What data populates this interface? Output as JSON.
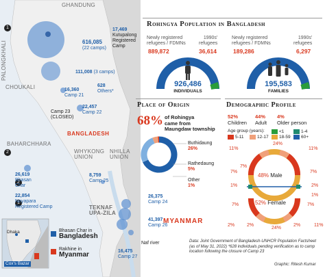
{
  "map": {
    "labels": {
      "ghandung": "GHANDUNG",
      "palongkhali": "PALONGKHALI",
      "choukali": "CHOUKALI",
      "baharchhara": "BAHARCHHARA",
      "bangladesh": "BANGLADESH",
      "whykong": "WHYKONG\nUNION",
      "nhilla": "NHILLA\nUNION",
      "teknaf": "TEKNAF\nUPA-ZILA",
      "myanmar": "MYANMAR",
      "naf_river": "Naf river"
    },
    "camps": [
      {
        "number": "17,469",
        "text": "Kutupalong\nRegistered\nCamp"
      },
      {
        "number": "616,085",
        "text": "(22 camps)"
      },
      {
        "number": "111,008",
        "text": "(3 camps)"
      },
      {
        "number": "16,360",
        "text": "Camp 21"
      },
      {
        "number": "628",
        "text": "Others*"
      },
      {
        "number": "",
        "text": "Camp 23\n(CLOSED)"
      },
      {
        "number": "22,457",
        "text": "Camp 22"
      },
      {
        "number": "26,619",
        "text": "Bhasan\nChar"
      },
      {
        "number": "8,759",
        "text": "Camp 25"
      },
      {
        "number": "22,854",
        "text": "Nayapara\nRegistered Camp"
      },
      {
        "number": "26,375",
        "text": "Camp 24"
      },
      {
        "number": "41,397",
        "text": "Camp 26"
      },
      {
        "number": "16,475",
        "text": "Camp 27"
      }
    ],
    "markers": [
      "1",
      "2",
      "2",
      "1"
    ],
    "inset": {
      "dhaka": "Dhaka",
      "coxs_bazar": "Cox's Bazar",
      "legend_bhasan_prefix": "Bhasan Char in",
      "legend_bhasan_country": "Bangladesh",
      "legend_rakhine_prefix": "Rakhine in",
      "legend_rakhine_country": "Myanmar"
    }
  },
  "population": {
    "title": "Rohingya Population in Bangladesh",
    "individuals": {
      "registered_label": "Newly registered\nrefugees / FDMNs",
      "registered_value": "889,872",
      "older_label": "1990s'\nrefugees",
      "older_value": "36,614",
      "total": "926,486",
      "total_label": "INDIVIDUALS"
    },
    "families": {
      "registered_label": "Newly registered\nrefugees / FDMNs",
      "registered_value": "189,286",
      "older_label": "1990s'\nrefugees",
      "older_value": "6,297",
      "total": "195,583",
      "total_label": "FAMILIES"
    }
  },
  "origin": {
    "title": "Place of Origin",
    "headline_pct": "68%",
    "headline_text": "of Rohingya\ncame from\nMaungdaw township",
    "segments": [
      {
        "name": "Maungdaw",
        "pct": 68,
        "color": "#1f5fa8"
      },
      {
        "name": "Buthidaung",
        "pct": 26,
        "color": "#7fb0e0"
      },
      {
        "name": "Rathedaung",
        "pct": 5,
        "color": "#f0a07a"
      },
      {
        "name": "Other",
        "pct": 1,
        "color": "#d9381e"
      }
    ],
    "labels": [
      {
        "name": "Buthidaung",
        "pct": "26%"
      },
      {
        "name": "Rathedaung",
        "pct": "5%"
      },
      {
        "name": "Other",
        "pct": "1%"
      }
    ]
  },
  "demographic": {
    "title": "Demographic Profile",
    "children_pct": "52%",
    "children_label": "Children",
    "adult_pct": "44%",
    "adult_label": "Adult",
    "older_pct": "4%",
    "older_label": "Older person",
    "age_group_title": "Age group (years):",
    "age_groups": [
      {
        "label": "<1",
        "color": "#2a9d3a"
      },
      {
        "label": "1-4",
        "color": "#1f8a6f"
      },
      {
        "label": "5-11",
        "color": "#d9381e"
      },
      {
        "label": "12-17",
        "color": "#f0a07a"
      },
      {
        "label": "18-59",
        "color": "#e8a93a"
      },
      {
        "label": "60+",
        "color": "#1f5fa8"
      }
    ],
    "male_pct": "48%",
    "male_label": "Male",
    "female_pct": "52%",
    "female_label": "Female",
    "ring_labels": [
      "11%",
      "7%",
      "1%",
      "7%",
      "2%",
      "11%",
      "7%",
      "2%",
      "24%",
      "7%",
      "1%",
      "2%",
      "2%",
      "11%",
      "7%",
      "24%"
    ]
  },
  "footnote": {
    "source": "Data: Joint Government of Bangladesh-UNHCR Population Factsheet (as of May 31, 2022) *628 individuals pending verification as to camp location following the closure of Camp 23",
    "graphic": "Graphic: Ritesh Kumar"
  },
  "colors": {
    "blue": "#1f5fa8",
    "light_blue": "#7fb0e0",
    "red": "#d9381e",
    "green": "#2a9d3a",
    "orange": "#e38a1f",
    "land": "#e6e6e6",
    "water": "#d6e6f3"
  }
}
